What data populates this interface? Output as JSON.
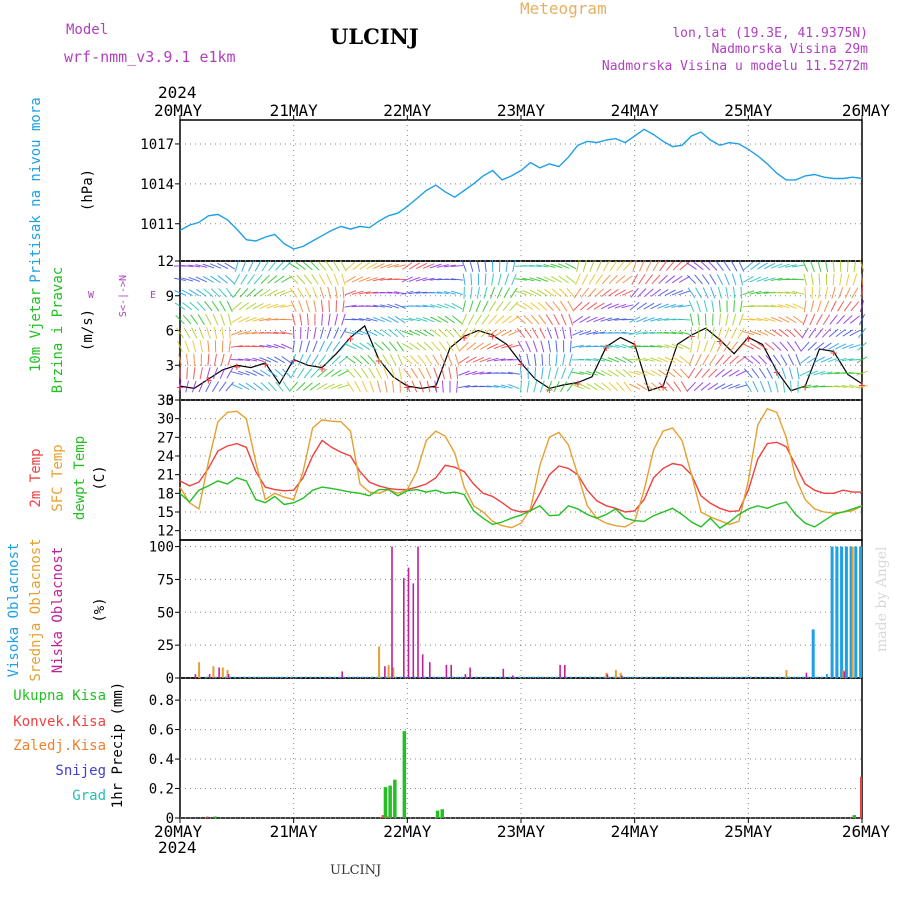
{
  "header": {
    "model_label": "Model",
    "model_name": "wrf-nmm_v3.9.1 e1km",
    "title": "ULCINJ",
    "chart_type": "Meteogram",
    "location": "lon,lat (19.3E, 41.9375N)",
    "elevation": "Nadmorska Visina 29m",
    "model_elevation": "Nadmorska Visina u modelu 11.5272m",
    "watermark": "made by Angel",
    "footer_station": "ULCINJ"
  },
  "colors": {
    "pressure": "#1ea0e6",
    "temp2m": "#f04040",
    "sfc": "#e6a030",
    "dewpt": "#22c022",
    "high_cloud": "#1ea0e6",
    "mid_cloud": "#e6a030",
    "low_cloud": "#c0209a",
    "total_rain": "#22c022",
    "conv_rain": "#f04040",
    "freezing": "#f08030",
    "snow": "#4040d0",
    "hail": "#22c0b0",
    "header_purple": "#b040c0",
    "header_orange": "#e6b060"
  },
  "chart_data": [
    {
      "type": "line",
      "panel": "pressure",
      "ylabel": [
        "Pritisak na nivou mora",
        "(hPa)"
      ],
      "ylim": [
        1008.2,
        1018.8
      ],
      "yticks": [
        1011,
        1014,
        1017
      ],
      "x_hours": [
        0,
        2,
        4,
        6,
        8,
        10,
        12,
        14,
        16,
        18,
        20,
        22,
        24,
        26,
        28,
        30,
        32,
        34,
        36,
        38,
        40,
        42,
        44,
        46,
        48,
        50,
        52,
        54,
        56,
        58,
        60,
        62,
        64,
        66,
        68,
        70,
        72,
        74,
        76,
        78,
        80,
        82,
        84,
        86,
        88,
        90,
        92,
        94,
        96,
        98,
        100,
        102,
        104,
        106,
        108,
        110,
        112,
        114,
        116,
        118,
        120,
        122,
        124,
        126,
        128,
        130,
        132,
        134,
        136,
        138,
        140,
        142,
        144
      ],
      "series": [
        {
          "values": [
            1010.5,
            1010.9,
            1011.1,
            1011.6,
            1011.7,
            1011.3,
            1010.6,
            1009.8,
            1009.7,
            1010.0,
            1010.2,
            1009.5,
            1009.1,
            1009.3,
            1009.7,
            1010.1,
            1010.5,
            1010.8,
            1010.6,
            1010.8,
            1010.7,
            1011.2,
            1011.6,
            1011.8,
            1012.3,
            1012.9,
            1013.5,
            1013.9,
            1013.4,
            1013.0,
            1013.5,
            1014.0,
            1014.6,
            1015.0,
            1014.3,
            1014.6,
            1015.0,
            1015.6,
            1015.2,
            1015.5,
            1015.3,
            1016.0,
            1016.9,
            1017.2,
            1017.1,
            1017.3,
            1017.4,
            1017.1,
            1017.6,
            1018.1,
            1017.7,
            1017.2,
            1016.8,
            1016.9,
            1017.6,
            1017.9,
            1017.3,
            1016.9,
            1017.1,
            1017.0,
            1016.6,
            1016.1,
            1015.5,
            1014.8,
            1014.3,
            1014.3,
            1014.6,
            1014.7,
            1014.5,
            1014.4,
            1014.4,
            1014.5,
            1014.4
          ]
        }
      ]
    },
    {
      "type": "line",
      "panel": "wind",
      "ylabel": [
        "10m Vjetar",
        "Brzina i Pravac",
        "(m/s)"
      ],
      "compass": {
        "n": "N",
        "s": "S",
        "e": "E",
        "w": "W"
      },
      "ylim": [
        0,
        12
      ],
      "yticks": [
        0,
        3,
        6,
        9,
        12
      ],
      "x_hours": [
        0,
        3,
        6,
        9,
        12,
        15,
        18,
        21,
        24,
        27,
        30,
        33,
        36,
        39,
        42,
        45,
        48,
        51,
        54,
        57,
        60,
        63,
        66,
        69,
        72,
        75,
        78,
        81,
        84,
        87,
        90,
        93,
        96,
        99,
        102,
        105,
        108,
        111,
        114,
        117,
        120,
        123,
        126,
        129,
        132,
        135,
        138,
        141,
        144
      ],
      "series": [
        {
          "values": [
            1.2,
            1.0,
            1.8,
            2.6,
            3.0,
            2.8,
            3.2,
            1.4,
            3.5,
            3.0,
            2.8,
            4.0,
            5.4,
            6.4,
            3.5,
            2.0,
            1.2,
            1.0,
            1.2,
            4.5,
            5.5,
            6.0,
            5.6,
            4.8,
            3.2,
            1.8,
            1.0,
            1.3,
            1.5,
            2.0,
            4.6,
            5.4,
            4.8,
            0.8,
            1.2,
            4.8,
            5.6,
            6.2,
            5.2,
            4.0,
            5.4,
            4.8,
            2.5,
            0.8,
            1.2,
            4.4,
            4.2,
            2.2,
            1.4
          ]
        }
      ]
    },
    {
      "type": "line",
      "panel": "temperature",
      "ylabel": [
        "2m Temp",
        "SFC Temp",
        "dewpt Temp",
        "(C)"
      ],
      "ylim": [
        10.5,
        33
      ],
      "yticks": [
        12,
        15,
        18,
        21,
        24,
        27,
        30,
        33
      ],
      "x_hours": [
        0,
        2,
        4,
        6,
        8,
        10,
        12,
        14,
        16,
        18,
        20,
        22,
        24,
        26,
        28,
        30,
        32,
        34,
        36,
        38,
        40,
        42,
        44,
        46,
        48,
        50,
        52,
        54,
        56,
        58,
        60,
        62,
        64,
        66,
        68,
        70,
        72,
        74,
        76,
        78,
        80,
        82,
        84,
        86,
        88,
        90,
        92,
        94,
        96,
        98,
        100,
        102,
        104,
        106,
        108,
        110,
        112,
        114,
        116,
        118,
        120,
        122,
        124,
        126,
        128,
        130,
        132,
        134,
        136,
        138,
        140,
        142,
        144
      ],
      "series": [
        {
          "name": "2m Temp",
          "values": [
            20.0,
            19.2,
            19.8,
            22.0,
            24.8,
            25.6,
            26.0,
            25.4,
            21.5,
            19.0,
            18.6,
            18.4,
            18.5,
            20.5,
            24.0,
            26.5,
            25.4,
            24.6,
            24.0,
            21.5,
            19.8,
            19.2,
            18.8,
            18.6,
            18.6,
            19.0,
            19.5,
            20.5,
            22.5,
            22.2,
            21.5,
            19.5,
            18.0,
            17.5,
            16.5,
            15.4,
            15.0,
            15.2,
            18.0,
            21.0,
            22.4,
            22.0,
            21.0,
            18.5,
            16.8,
            16.0,
            15.6,
            15.0,
            15.2,
            17.0,
            20.5,
            22.0,
            22.8,
            22.5,
            21.0,
            17.6,
            16.4,
            15.6,
            15.1,
            15.2,
            18.5,
            23.5,
            26.0,
            26.2,
            25.5,
            22.5,
            19.5,
            18.5,
            18.0,
            18.0,
            18.5,
            18.2,
            18.2
          ]
        },
        {
          "name": "SFC Temp",
          "values": [
            19.0,
            16.5,
            15.5,
            23.0,
            29.5,
            31.0,
            31.2,
            30.0,
            23.0,
            17.0,
            18.0,
            17.4,
            17.0,
            21.5,
            28.5,
            29.8,
            29.6,
            29.5,
            28.0,
            19.5,
            18.2,
            18.0,
            18.6,
            18.0,
            18.6,
            21.5,
            26.5,
            28.0,
            27.2,
            24.5,
            19.0,
            16.0,
            15.0,
            13.5,
            12.8,
            12.5,
            13.2,
            15.5,
            22.5,
            27.0,
            27.8,
            25.8,
            21.0,
            16.0,
            14.0,
            13.2,
            12.8,
            12.6,
            13.5,
            18.5,
            25.0,
            28.0,
            28.5,
            26.5,
            21.0,
            15.0,
            14.2,
            13.6,
            13.0,
            13.5,
            20.0,
            29.0,
            31.6,
            31.0,
            27.0,
            20.5,
            17.0,
            15.5,
            15.0,
            14.8,
            15.0,
            15.2,
            16.0
          ]
        },
        {
          "name": "dewpt Temp",
          "values": [
            18.0,
            16.6,
            18.5,
            19.2,
            20.0,
            19.5,
            20.5,
            20.0,
            17.0,
            16.5,
            17.5,
            16.2,
            16.5,
            17.2,
            18.5,
            19.0,
            18.8,
            18.5,
            18.2,
            18.0,
            17.6,
            18.6,
            18.6,
            17.6,
            18.4,
            18.6,
            18.2,
            18.5,
            18.0,
            18.2,
            17.8,
            15.2,
            14.0,
            13.0,
            13.4,
            14.0,
            14.5,
            15.2,
            16.0,
            14.4,
            14.5,
            16.0,
            15.5,
            14.6,
            14.0,
            14.6,
            15.5,
            14.0,
            13.6,
            13.5,
            14.4,
            15.0,
            15.6,
            14.6,
            13.4,
            12.6,
            14.0,
            12.4,
            13.4,
            14.6,
            15.5,
            16.0,
            15.6,
            16.2,
            16.6,
            14.6,
            13.2,
            12.6,
            13.6,
            14.6,
            15.0,
            15.5,
            16.0
          ]
        }
      ]
    },
    {
      "type": "bar",
      "panel": "clouds",
      "ylabel": [
        "Visoka Oblacnost",
        "Srednja Oblacnost",
        "Niska Oblacnost",
        "(%)"
      ],
      "ylim": [
        0,
        105
      ],
      "yticks": [
        0,
        25,
        50,
        75,
        100
      ],
      "series": [
        {
          "name": "Visoka Oblacnost",
          "x_hours": [
            5,
            7,
            9,
            10,
            11,
            12,
            13,
            14,
            15,
            16,
            17,
            18,
            19,
            20,
            21,
            22,
            23,
            24,
            25,
            26,
            27,
            28,
            29,
            30,
            31,
            32,
            33,
            34,
            35,
            36,
            37,
            38,
            39,
            40,
            41,
            42,
            43,
            44,
            45,
            46,
            47,
            48,
            49,
            50,
            51,
            52,
            53,
            54,
            55,
            56,
            57,
            58,
            59,
            60,
            61,
            62,
            63,
            64,
            65,
            66,
            67,
            68,
            69,
            70,
            71,
            72,
            73,
            74,
            75,
            76,
            77,
            78,
            79,
            80,
            81,
            82,
            83,
            84,
            85,
            86,
            87,
            88,
            89,
            90,
            91,
            92,
            93,
            94,
            95,
            96,
            97,
            98,
            99,
            100,
            101,
            102,
            103,
            104,
            105,
            106,
            107,
            108,
            109,
            110,
            111,
            112,
            113,
            114,
            115,
            116,
            117,
            118,
            119,
            120,
            121,
            122,
            123,
            124,
            125,
            126,
            127,
            128,
            129,
            130,
            131,
            132,
            133,
            134,
            135,
            136,
            137,
            138,
            139,
            140,
            141,
            142,
            143
          ],
          "values": [
            1,
            1,
            1,
            1,
            1,
            1,
            1,
            1,
            1,
            1,
            1,
            1,
            1,
            1,
            1,
            1,
            1,
            1,
            1,
            1,
            1,
            1,
            1,
            1,
            1,
            1,
            1,
            1,
            1,
            1,
            1,
            1,
            1,
            1,
            1,
            1,
            1,
            1,
            1,
            1,
            1,
            1,
            1,
            1,
            1,
            1,
            1,
            1,
            1,
            1,
            1,
            1,
            1,
            1,
            1,
            1,
            1,
            1,
            1,
            1,
            1,
            1,
            1,
            1,
            1,
            1,
            1,
            1,
            1,
            1,
            1,
            1,
            1,
            1,
            1,
            1,
            1,
            1,
            1,
            1,
            1,
            1,
            1,
            1,
            1,
            1,
            1,
            1,
            1,
            1,
            1,
            1,
            1,
            1,
            1,
            1,
            1,
            1,
            1,
            1,
            1,
            1,
            1,
            1,
            1,
            1,
            1,
            1,
            1,
            1,
            1,
            1,
            1,
            1,
            1,
            1,
            1,
            1,
            1,
            1,
            1,
            1,
            1,
            1,
            1,
            1,
            37,
            1,
            1,
            3,
            100,
            100,
            100,
            100,
            100,
            100,
            100
          ]
        },
        {
          "name": "Srednja Oblacnost",
          "x_hours": [
            4,
            7,
            9,
            10,
            42,
            44,
            45,
            90,
            92,
            93,
            128,
            140,
            142
          ],
          "values": [
            12,
            9,
            8,
            6,
            24,
            10,
            8,
            4,
            6,
            4,
            6,
            6,
            100
          ]
        },
        {
          "name": "Niska Oblacnost",
          "x_hours": [
            3,
            6,
            8,
            10,
            34,
            43,
            44.5,
            47,
            48,
            49,
            50,
            51,
            52.5,
            56,
            57,
            60,
            61,
            68,
            70,
            80,
            81,
            90,
            93,
            132,
            140
          ],
          "values": [
            3,
            3,
            8,
            3,
            5,
            9,
            100,
            76,
            84,
            72,
            100,
            18,
            12,
            10,
            10,
            3,
            8,
            7,
            2,
            10,
            10,
            3,
            2,
            4,
            5
          ]
        }
      ]
    },
    {
      "type": "bar",
      "panel": "precipitation",
      "ylabel": [
        "Ukupna Kisa",
        "Konvek.Kisa",
        "Zaledj.Kisa",
        "Snijeg",
        "Grad",
        "1hr Precip (mm)"
      ],
      "ylim": [
        0,
        0.95
      ],
      "yticks": [
        0,
        0.2,
        0.4,
        0.6,
        0.8
      ],
      "series": [
        {
          "name": "Ukupna Kisa",
          "x_hours": [
            7,
            43,
            44,
            45,
            47,
            54,
            55,
            142
          ],
          "values": [
            0.01,
            0.21,
            0.22,
            0.26,
            0.59,
            0.05,
            0.06,
            0.02
          ]
        },
        {
          "name": "Konvek.Kisa",
          "x_hours": [
            6,
            43,
            44,
            144
          ],
          "values": [
            0.01,
            0.02,
            0.01,
            0.28
          ]
        },
        {
          "name": "Zaledj.Kisa",
          "x_hours": [],
          "values": []
        },
        {
          "name": "Snijeg",
          "x_hours": [],
          "values": []
        },
        {
          "name": "Grad",
          "x_hours": [],
          "values": []
        }
      ]
    }
  ],
  "time_axis": {
    "x_hours": [
      0,
      24,
      48,
      72,
      96,
      120,
      144
    ],
    "labels": [
      "20MAY",
      "21MAY",
      "22MAY",
      "23MAY",
      "24MAY",
      "25MAY",
      "26MAY"
    ],
    "year": "2024"
  }
}
